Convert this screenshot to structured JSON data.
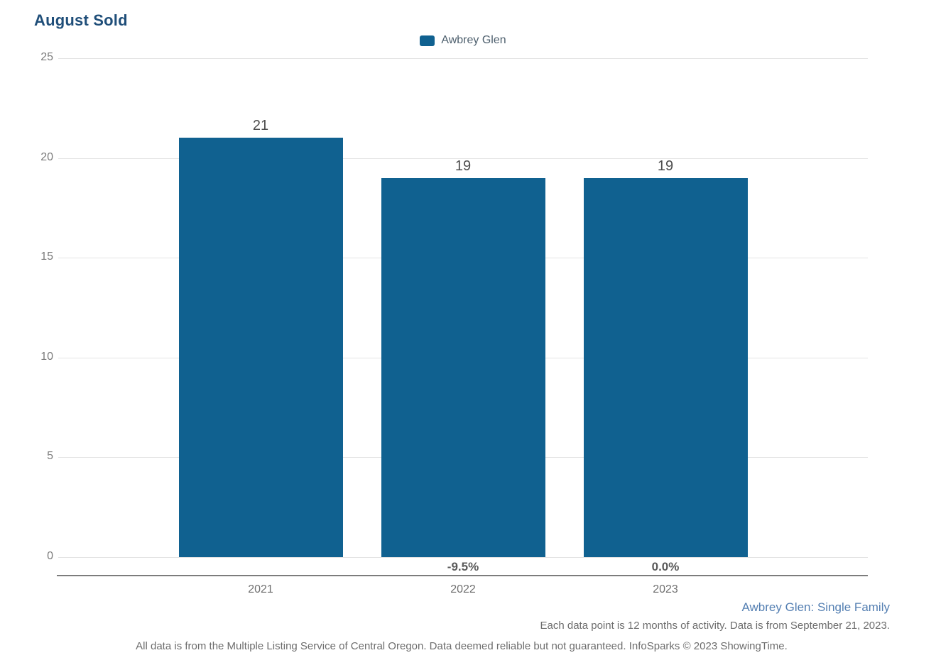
{
  "chart_data": {
    "type": "bar",
    "title": "August Sold",
    "legend": [
      {
        "label": "Awbrey Glen",
        "color": "#106190"
      }
    ],
    "categories": [
      "2021",
      "2022",
      "2023"
    ],
    "values": [
      21,
      19,
      19
    ],
    "pct_change": [
      null,
      "-9.5%",
      "0.0%"
    ],
    "xlabel": "",
    "ylabel": "",
    "ylim": [
      0,
      25
    ],
    "yticks": [
      25,
      20,
      15,
      10,
      5,
      0
    ],
    "grid": true,
    "legend_position": "top-center"
  },
  "colors": {
    "bar": "#106190",
    "title": "#1f4e79",
    "gridline": "#e3e3e3",
    "axis_line": "#7c7c7c",
    "tick_label": "#7b7b7b",
    "value_label": "#4d4d4d",
    "pct_label": "#5a5a5a",
    "year_label": "#6f6f6f",
    "legend_text": "#4d5f6d",
    "context_link": "#547fb2",
    "note_text": "#6d6d6d"
  },
  "footer": {
    "series_context": "Awbrey Glen: Single Family",
    "note_line": "Each data point is 12 months of activity. Data is from September 21, 2023.",
    "attribution_line": "All data is from the Multiple Listing Service of Central Oregon. Data deemed reliable but not guaranteed. InfoSparks © 2023 ShowingTime."
  }
}
